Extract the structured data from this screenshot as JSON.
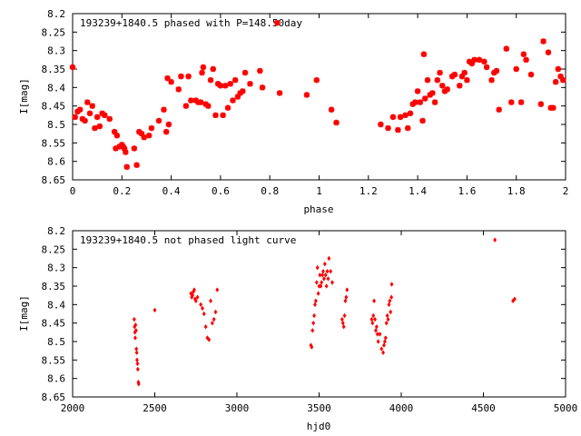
{
  "chart_data": [
    {
      "type": "scatter",
      "title": "193239+1840.5 phased with P=148.50day",
      "xlabel": "phase",
      "ylabel": "I[mag]",
      "xlim": [
        0,
        2
      ],
      "ylim": [
        8.2,
        8.65
      ],
      "y_inverted": true,
      "grid": false,
      "x_ticks": [
        "0",
        "0.2",
        "0.4",
        "0.6",
        "0.8",
        "1",
        "1.2",
        "1.4",
        "1.6",
        "1.8",
        "2"
      ],
      "y_ticks": [
        "8.2",
        "8.25",
        "8.3",
        "8.35",
        "8.4",
        "8.45",
        "8.5",
        "8.55",
        "8.6",
        "8.65"
      ],
      "marker_color": "#ff0000",
      "series": [
        {
          "points": [
            [
              0.0,
              8.345
            ],
            [
              0.01,
              8.48
            ],
            [
              0.02,
              8.465
            ],
            [
              0.03,
              8.46
            ],
            [
              0.04,
              8.485
            ],
            [
              0.05,
              8.49
            ],
            [
              0.06,
              8.44
            ],
            [
              0.07,
              8.47
            ],
            [
              0.08,
              8.45
            ],
            [
              0.09,
              8.51
            ],
            [
              0.1,
              8.48
            ],
            [
              0.11,
              8.505
            ],
            [
              0.12,
              8.47
            ],
            [
              0.13,
              8.475
            ],
            [
              0.15,
              8.485
            ],
            [
              0.17,
              8.52
            ],
            [
              0.175,
              8.565
            ],
            [
              0.18,
              8.53
            ],
            [
              0.19,
              8.56
            ],
            [
              0.2,
              8.555
            ],
            [
              0.205,
              8.56
            ],
            [
              0.21,
              8.565
            ],
            [
              0.215,
              8.575
            ],
            [
              0.22,
              8.615
            ],
            [
              0.25,
              8.565
            ],
            [
              0.26,
              8.61
            ],
            [
              0.27,
              8.52
            ],
            [
              0.28,
              8.525
            ],
            [
              0.29,
              8.535
            ],
            [
              0.31,
              8.53
            ],
            [
              0.32,
              8.51
            ],
            [
              0.35,
              8.49
            ],
            [
              0.37,
              8.46
            ],
            [
              0.38,
              8.52
            ],
            [
              0.39,
              8.5
            ],
            [
              0.385,
              8.375
            ],
            [
              0.4,
              8.385
            ],
            [
              0.43,
              8.405
            ],
            [
              0.44,
              8.37
            ],
            [
              0.46,
              8.45
            ],
            [
              0.47,
              8.37
            ],
            [
              0.48,
              8.435
            ],
            [
              0.5,
              8.435
            ],
            [
              0.51,
              8.44
            ],
            [
              0.52,
              8.44
            ],
            [
              0.525,
              8.36
            ],
            [
              0.53,
              8.345
            ],
            [
              0.54,
              8.445
            ],
            [
              0.55,
              8.45
            ],
            [
              0.56,
              8.38
            ],
            [
              0.57,
              8.35
            ],
            [
              0.58,
              8.475
            ],
            [
              0.59,
              8.39
            ],
            [
              0.6,
              8.395
            ],
            [
              0.61,
              8.475
            ],
            [
              0.62,
              8.395
            ],
            [
              0.63,
              8.455
            ],
            [
              0.64,
              8.39
            ],
            [
              0.65,
              8.435
            ],
            [
              0.66,
              8.38
            ],
            [
              0.67,
              8.425
            ],
            [
              0.68,
              8.415
            ],
            [
              0.69,
              8.41
            ],
            [
              0.7,
              8.36
            ],
            [
              0.72,
              8.39
            ],
            [
              0.76,
              8.355
            ],
            [
              0.77,
              8.4
            ],
            [
              0.84,
              8.415
            ],
            [
              0.95,
              8.42
            ],
            [
              0.99,
              8.38
            ],
            [
              1.05,
              8.46
            ],
            [
              1.07,
              8.495
            ],
            [
              1.25,
              8.5
            ],
            [
              1.28,
              8.51
            ],
            [
              1.3,
              8.48
            ],
            [
              1.32,
              8.515
            ],
            [
              1.33,
              8.48
            ],
            [
              1.35,
              8.475
            ],
            [
              1.36,
              8.51
            ],
            [
              1.37,
              8.47
            ],
            [
              1.38,
              8.445
            ],
            [
              1.39,
              8.44
            ],
            [
              1.4,
              8.41
            ],
            [
              1.41,
              8.44
            ],
            [
              1.42,
              8.49
            ],
            [
              1.425,
              8.31
            ],
            [
              1.43,
              8.43
            ],
            [
              1.44,
              8.38
            ],
            [
              1.45,
              8.42
            ],
            [
              1.46,
              8.415
            ],
            [
              1.47,
              8.44
            ],
            [
              1.48,
              8.38
            ],
            [
              1.49,
              8.36
            ],
            [
              1.5,
              8.395
            ],
            [
              1.51,
              8.41
            ],
            [
              1.52,
              8.405
            ],
            [
              1.54,
              8.37
            ],
            [
              1.55,
              8.365
            ],
            [
              1.57,
              8.395
            ],
            [
              1.58,
              8.37
            ],
            [
              1.59,
              8.36
            ],
            [
              1.6,
              8.38
            ],
            [
              1.61,
              8.33
            ],
            [
              1.62,
              8.335
            ],
            [
              1.63,
              8.325
            ],
            [
              1.65,
              8.325
            ],
            [
              1.67,
              8.33
            ],
            [
              1.68,
              8.345
            ],
            [
              1.7,
              8.38
            ],
            [
              1.71,
              8.36
            ],
            [
              1.72,
              8.355
            ],
            [
              1.73,
              8.46
            ],
            [
              1.76,
              8.295
            ],
            [
              1.78,
              8.44
            ],
            [
              1.8,
              8.35
            ],
            [
              1.82,
              8.44
            ],
            [
              1.83,
              8.31
            ],
            [
              1.84,
              8.325
            ],
            [
              1.86,
              8.365
            ],
            [
              1.9,
              8.445
            ],
            [
              1.91,
              8.275
            ],
            [
              1.93,
              8.305
            ],
            [
              1.94,
              8.455
            ],
            [
              1.95,
              8.455
            ],
            [
              1.96,
              8.385
            ],
            [
              1.97,
              8.35
            ],
            [
              1.98,
              8.37
            ],
            [
              1.99,
              8.38
            ]
          ]
        }
      ],
      "annotations": [
        {
          "x": 0.83,
          "y": 8.225,
          "text": ""
        }
      ]
    },
    {
      "type": "scatter",
      "title": "193239+1840.5 not phased light curve",
      "xlabel": "hjd0",
      "ylabel": "I[mag]",
      "xlim": [
        2000,
        5000
      ],
      "ylim": [
        8.2,
        8.65
      ],
      "y_inverted": true,
      "grid": false,
      "x_ticks": [
        "2000",
        "2500",
        "3000",
        "3500",
        "4000",
        "4500",
        "5000"
      ],
      "y_ticks": [
        "8.2",
        "8.25",
        "8.3",
        "8.35",
        "8.4",
        "8.45",
        "8.5",
        "8.55",
        "8.6",
        "8.65"
      ],
      "marker_color": "#ff0000",
      "series": [
        {
          "points": [
            [
              2375,
              8.44
            ],
            [
              2377,
              8.46
            ],
            [
              2379,
              8.475
            ],
            [
              2381,
              8.49
            ],
            [
              2383,
              8.455
            ],
            [
              2386,
              8.47
            ],
            [
              2388,
              8.52
            ],
            [
              2390,
              8.53
            ],
            [
              2392,
              8.55
            ],
            [
              2395,
              8.56
            ],
            [
              2397,
              8.575
            ],
            [
              2400,
              8.61
            ],
            [
              2402,
              8.615
            ],
            [
              2500,
              8.415
            ],
            [
              2720,
              8.37
            ],
            [
              2725,
              8.38
            ],
            [
              2730,
              8.375
            ],
            [
              2735,
              8.365
            ],
            [
              2740,
              8.36
            ],
            [
              2745,
              8.385
            ],
            [
              2750,
              8.39
            ],
            [
              2760,
              8.38
            ],
            [
              2780,
              8.4
            ],
            [
              2790,
              8.41
            ],
            [
              2800,
              8.425
            ],
            [
              2810,
              8.46
            ],
            [
              2820,
              8.49
            ],
            [
              2830,
              8.495
            ],
            [
              2840,
              8.39
            ],
            [
              2850,
              8.45
            ],
            [
              2860,
              8.44
            ],
            [
              2870,
              8.42
            ],
            [
              2880,
              8.36
            ],
            [
              3450,
              8.51
            ],
            [
              3455,
              8.515
            ],
            [
              3460,
              8.47
            ],
            [
              3465,
              8.45
            ],
            [
              3470,
              8.43
            ],
            [
              3475,
              8.4
            ],
            [
              3480,
              8.39
            ],
            [
              3485,
              8.34
            ],
            [
              3490,
              8.3
            ],
            [
              3495,
              8.37
            ],
            [
              3500,
              8.35
            ],
            [
              3505,
              8.32
            ],
            [
              3510,
              8.35
            ],
            [
              3515,
              8.34
            ],
            [
              3520,
              8.32
            ],
            [
              3525,
              8.31
            ],
            [
              3530,
              8.33
            ],
            [
              3535,
              8.29
            ],
            [
              3540,
              8.32
            ],
            [
              3545,
              8.35
            ],
            [
              3550,
              8.31
            ],
            [
              3555,
              8.33
            ],
            [
              3560,
              8.275
            ],
            [
              3570,
              8.31
            ],
            [
              3580,
              8.34
            ],
            [
              3640,
              8.44
            ],
            [
              3645,
              8.45
            ],
            [
              3650,
              8.46
            ],
            [
              3655,
              8.43
            ],
            [
              3660,
              8.39
            ],
            [
              3665,
              8.38
            ],
            [
              3670,
              8.36
            ],
            [
              3820,
              8.44
            ],
            [
              3825,
              8.45
            ],
            [
              3830,
              8.43
            ],
            [
              3835,
              8.39
            ],
            [
              3840,
              8.44
            ],
            [
              3845,
              8.47
            ],
            [
              3850,
              8.46
            ],
            [
              3855,
              8.48
            ],
            [
              3860,
              8.5
            ],
            [
              3870,
              8.48
            ],
            [
              3880,
              8.52
            ],
            [
              3890,
              8.53
            ],
            [
              3895,
              8.51
            ],
            [
              3900,
              8.5
            ],
            [
              3905,
              8.49
            ],
            [
              3910,
              8.45
            ],
            [
              3915,
              8.43
            ],
            [
              3920,
              8.44
            ],
            [
              3925,
              8.4
            ],
            [
              3930,
              8.39
            ],
            [
              3935,
              8.42
            ],
            [
              3940,
              8.38
            ],
            [
              3942,
              8.345
            ],
            [
              4570,
              8.225
            ],
            [
              4680,
              8.39
            ],
            [
              4690,
              8.385
            ]
          ]
        }
      ]
    }
  ]
}
